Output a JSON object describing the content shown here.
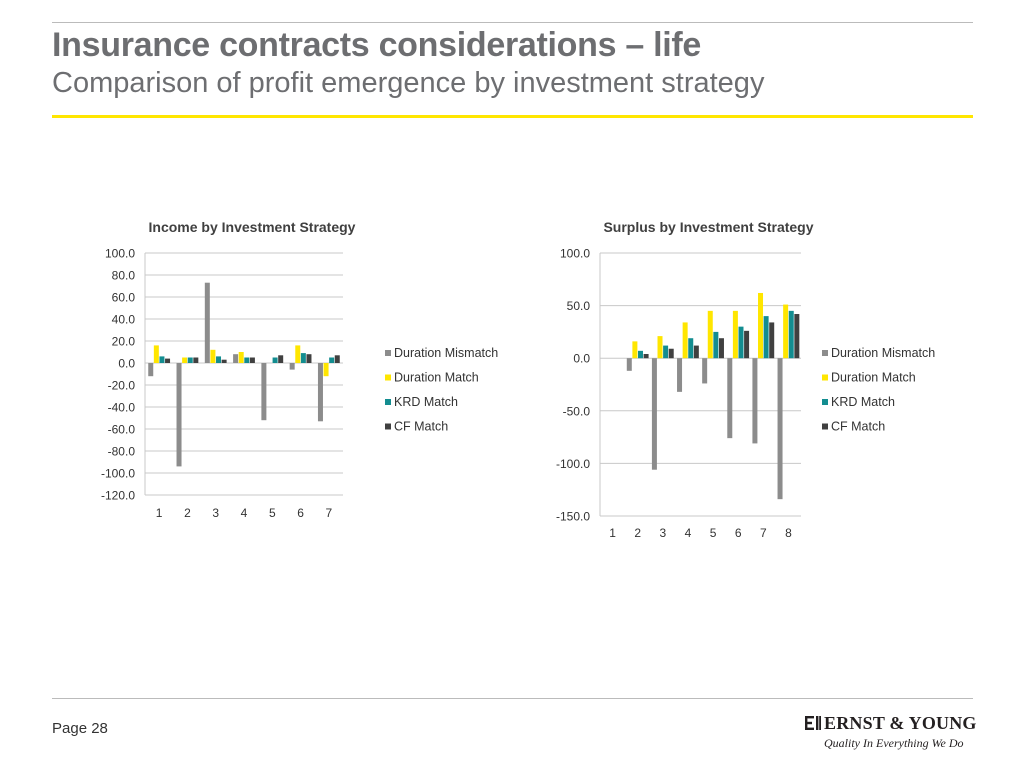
{
  "header": {
    "title": "Insurance contracts considerations – life",
    "subtitle": "Comparison of profit emergence by investment strategy"
  },
  "footer": {
    "page": "Page 28",
    "logo_name": "ERNST & YOUNG",
    "logo_tagline": "Quality In Everything We Do"
  },
  "colors": {
    "title": "#6d6e71",
    "accent_rule": "#ffe600",
    "duration_mismatch": "#8c8c8c",
    "duration_match": "#ffe600",
    "krd_match": "#138d90",
    "cf_match": "#404040"
  },
  "chart_data": [
    {
      "type": "bar",
      "title": "Income by Investment Strategy",
      "categories": [
        "1",
        "2",
        "3",
        "4",
        "5",
        "6",
        "7"
      ],
      "ylim": [
        -120,
        100
      ],
      "yticks": [
        100,
        80,
        60,
        40,
        20,
        0,
        -20,
        -40,
        -60,
        -80,
        -100,
        -120
      ],
      "tick_format": 1,
      "grid": true,
      "legend_position": "right",
      "series": [
        {
          "name": "Duration Mismatch",
          "color": "#8c8c8c",
          "values": [
            -12,
            -94,
            73,
            8,
            -52,
            -6,
            -53
          ]
        },
        {
          "name": "Duration Match",
          "color": "#ffe600",
          "values": [
            16,
            5,
            12,
            10,
            0,
            16,
            -12
          ]
        },
        {
          "name": "KRD Match",
          "color": "#138d90",
          "values": [
            6,
            5,
            6,
            5,
            5,
            9,
            5
          ]
        },
        {
          "name": "CF Match",
          "color": "#404040",
          "values": [
            4,
            5,
            3,
            5,
            7,
            8,
            7
          ]
        }
      ]
    },
    {
      "type": "bar",
      "title": "Surplus by Investment Strategy",
      "categories": [
        "1",
        "2",
        "3",
        "4",
        "5",
        "6",
        "7",
        "8"
      ],
      "ylim": [
        -150,
        100
      ],
      "yticks": [
        100,
        50,
        0,
        -50,
        -100,
        -150
      ],
      "tick_format": 1,
      "grid": true,
      "legend_position": "right",
      "series": [
        {
          "name": "Duration Mismatch",
          "color": "#8c8c8c",
          "values": [
            0,
            -12,
            -106,
            -32,
            -24,
            -76,
            -81,
            -134
          ]
        },
        {
          "name": "Duration Match",
          "color": "#ffe600",
          "values": [
            0,
            16,
            21,
            34,
            45,
            45,
            62,
            51
          ]
        },
        {
          "name": "KRD Match",
          "color": "#138d90",
          "values": [
            0,
            7,
            12,
            19,
            25,
            30,
            40,
            45
          ]
        },
        {
          "name": "CF Match",
          "color": "#404040",
          "values": [
            0,
            4,
            9,
            12,
            19,
            26,
            34,
            42
          ]
        }
      ]
    }
  ]
}
